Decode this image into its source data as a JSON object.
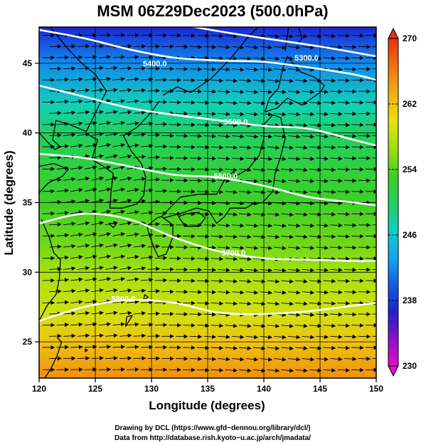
{
  "chart_data": {
    "type": "heatmap",
    "title": "MSM 06Z29Dec2023 (500.0hPa)",
    "xlabel": "Longitude (degrees)",
    "ylabel": "Latitude  (degrees)",
    "xlim": [
      120,
      150
    ],
    "ylim": [
      22.4,
      47.6
    ],
    "xticks": [
      120,
      125,
      130,
      135,
      140,
      145,
      150
    ],
    "xtick_labels": [
      "120",
      "125",
      "130",
      "135",
      "140",
      "145",
      "150"
    ],
    "yticks": [
      25,
      30,
      35,
      40,
      45
    ],
    "ytick_labels": [
      "25",
      "30",
      "35",
      "40",
      "45"
    ],
    "grid": true,
    "colorbar": {
      "min": 230,
      "max": 270,
      "ticks": [
        270,
        262,
        254,
        246,
        238,
        230
      ],
      "tick_labels": [
        "270",
        "262",
        "254",
        "246",
        "238",
        "230"
      ],
      "extend": "both",
      "colors": [
        "#e010c8",
        "#8a10c8",
        "#2020d0",
        "#1060e8",
        "#10a8f0",
        "#10d0c0",
        "#20d060",
        "#40d020",
        "#a0e010",
        "#e8e010",
        "#f0b010",
        "#f07010",
        "#e83010"
      ]
    },
    "temperature_by_latitude": {
      "lat": [
        47.6,
        45,
        42,
        40,
        37,
        35,
        32,
        30,
        27,
        25,
        22.4
      ],
      "temp_K": [
        237,
        242,
        247,
        250,
        252,
        253,
        255,
        257,
        259,
        262,
        265
      ]
    },
    "contours": [
      {
        "label": "5300.0",
        "level": 5300,
        "lon": [
          120,
          126,
          131,
          136,
          140,
          145,
          150
        ],
        "lat": [
          49.0,
          48.6,
          48.0,
          47.3,
          46.8,
          46.2,
          45.5
        ]
      },
      {
        "label": "5400.0",
        "level": 5400,
        "lon": [
          120,
          124,
          128,
          132,
          136,
          140,
          144,
          148,
          150
        ],
        "lat": [
          47.4,
          46.8,
          46.0,
          45.4,
          45.2,
          45.1,
          44.7,
          44.2,
          43.8
        ]
      },
      {
        "label": "5500.0",
        "level": 5500,
        "lon": [
          120,
          124,
          128,
          132,
          136,
          140,
          144,
          148,
          150
        ],
        "lat": [
          43.4,
          42.6,
          41.8,
          41.3,
          40.9,
          40.5,
          40.3,
          39.5,
          39.1
        ]
      },
      {
        "label": "5600.0",
        "level": 5600,
        "lon": [
          120,
          124,
          128,
          132,
          136,
          140,
          144,
          148,
          150
        ],
        "lat": [
          38.5,
          38.2,
          37.6,
          37.0,
          36.8,
          36.2,
          35.4,
          35.0,
          34.8
        ]
      },
      {
        "label": "5700.0",
        "level": 5700,
        "lon": [
          120,
          124,
          128,
          132,
          136,
          140,
          144,
          148,
          150
        ],
        "lat": [
          33.5,
          34.2,
          33.8,
          32.5,
          31.5,
          31.0,
          30.9,
          30.8,
          30.8
        ]
      },
      {
        "label": "5800.0",
        "level": 5800,
        "lon": [
          120,
          124,
          128,
          132,
          136,
          140,
          144,
          148,
          150
        ],
        "lat": [
          26.5,
          27.5,
          28.0,
          27.8,
          27.1,
          27.0,
          27.2,
          27.6,
          27.8
        ]
      }
    ],
    "contour_labels": [
      {
        "text": "5300.0",
        "lon": 143.8,
        "lat": 45.2
      },
      {
        "text": "5400.0",
        "lon": 130.3,
        "lat": 44.8
      },
      {
        "text": "5500.0",
        "lon": 137.5,
        "lat": 40.6
      },
      {
        "text": "5600.0",
        "lon": 136.6,
        "lat": 36.7
      },
      {
        "text": "5700.0",
        "lon": 137.3,
        "lat": 31.2
      },
      {
        "text": "5800.0",
        "lon": 127.5,
        "lat": 27.9
      }
    ],
    "wind_vectors": "streamline arrows, predominantly west-to-east, drawn over the map"
  },
  "credits": {
    "line1": "Drawing by DCL (https://www.gfd−dennou.org/library/dcl/)",
    "line2": "Data from http://database.rish.kyoto−u.ac.jp/arch/jmadata/"
  }
}
